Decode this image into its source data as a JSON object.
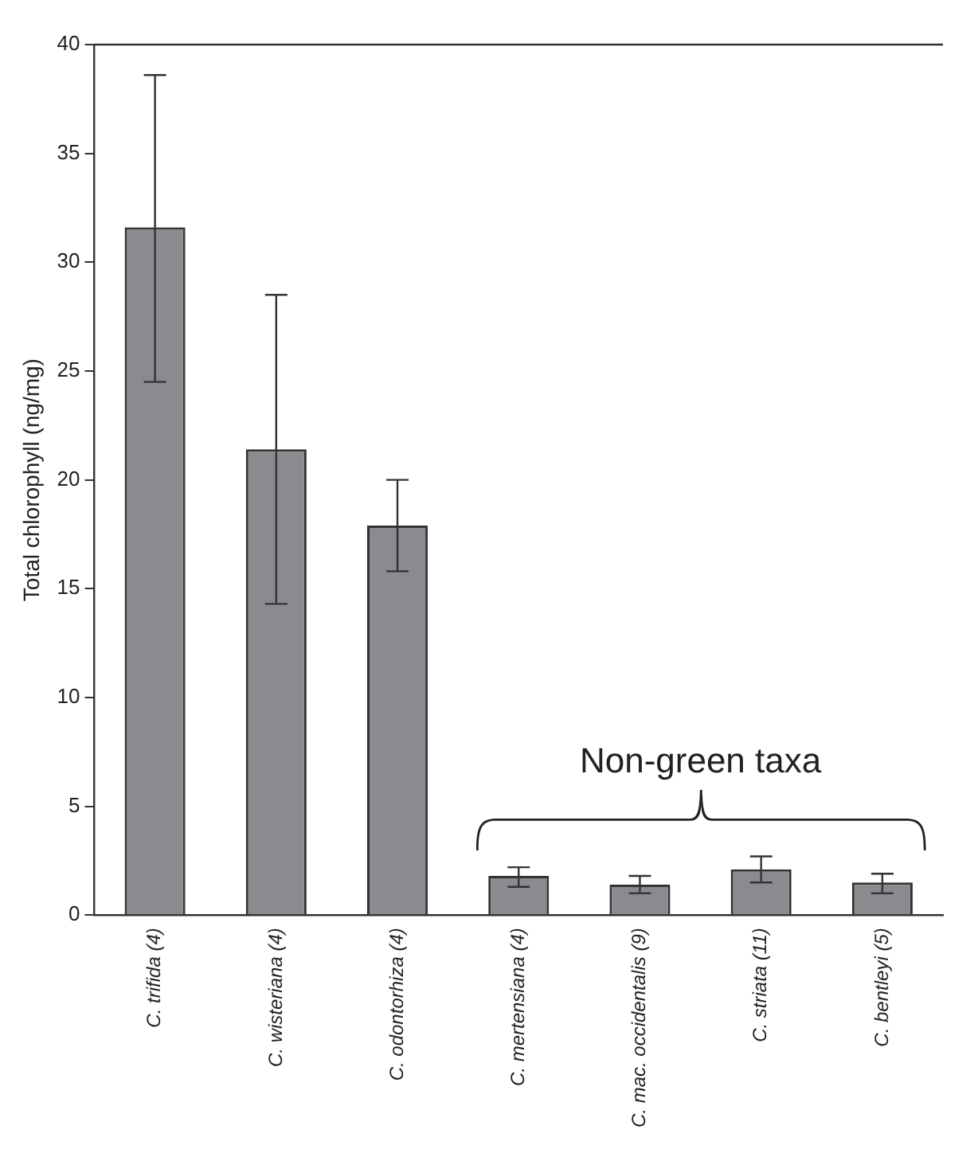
{
  "chart_data": {
    "type": "bar",
    "ylabel": "Total chlorophyll (ng/mg)",
    "categories": [
      "C. trifida (4)",
      "C. wisteriana (4)",
      "C. odontorhiza (4)",
      "C. mertensiana (4)",
      "C. mac. occidentalis (9)",
      "C. striata (11)",
      "C. bentleyi (5)"
    ],
    "values": [
      31.6,
      21.4,
      17.9,
      1.8,
      1.4,
      2.1,
      1.5
    ],
    "errors": [
      [
        24.5,
        38.6
      ],
      [
        14.3,
        28.5
      ],
      [
        15.8,
        20.0
      ],
      [
        1.3,
        2.2
      ],
      [
        1.0,
        1.8
      ],
      [
        1.5,
        2.7
      ],
      [
        1.0,
        1.9
      ]
    ],
    "color": "#8a8b8f",
    "ylim": [
      0,
      40
    ],
    "yticks": [
      0,
      5,
      10,
      15,
      20,
      25,
      30,
      35,
      40
    ],
    "annotations": [
      "Non-green taxa"
    ],
    "grid": false,
    "legend": false
  }
}
